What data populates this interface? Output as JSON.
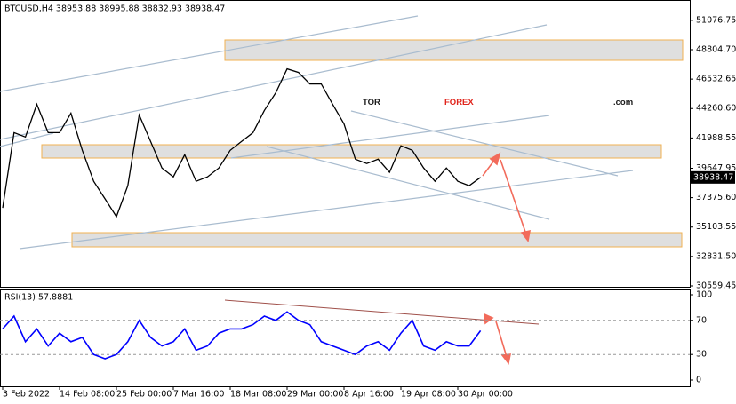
{
  "chart_data": [
    {
      "type": "line",
      "title": "BTCUSD,H4  38953.88 38995.88 38832.93 38938.47",
      "categories": [
        "3 Feb 2022",
        null,
        null,
        null,
        null,
        "14 Feb 08:00",
        null,
        null,
        null,
        null,
        "25 Feb 00:00",
        null,
        null,
        null,
        null,
        "7 Mar 16:00",
        null,
        null,
        null,
        null,
        "18 Mar 08:00",
        null,
        null,
        null,
        null,
        "29 Mar 00:00",
        null,
        null,
        null,
        null,
        "8 Apr 16:00",
        null,
        null,
        null,
        null,
        "19 Apr 08:00",
        null,
        null,
        null,
        null,
        "30 Apr 00:00",
        null,
        null
      ],
      "series": [
        {
          "name": "BTCUSD",
          "color": "#000000",
          "values": [
            36590,
            42400,
            42060,
            44590,
            42400,
            42400,
            43900,
            41030,
            38640,
            37280,
            35910,
            38300,
            43770,
            41720,
            39670,
            38980,
            40690,
            38640,
            38980,
            39670,
            41030,
            41720,
            42400,
            44110,
            45470,
            47320,
            47050,
            46160,
            46160,
            44590,
            43080,
            40350,
            40010,
            40350,
            39330,
            41380,
            41030,
            39670,
            38640,
            39670,
            38640,
            38300,
            38938.47
          ]
        }
      ],
      "last_price": 38938.47,
      "ylim": [
        30490,
        52440
      ],
      "yticks": [
        51076.75,
        {
          "value": 48804.7,
          "label": "48804.70"
        },
        46532.65,
        {
          "value": 44260.6,
          "label": "44260.60"
        },
        41988.55,
        39647.95,
        {
          "value": 37375.6,
          "label": "37375.60"
        },
        35103.55,
        {
          "value": 32831.5,
          "label": "32831.50"
        },
        30559.45
      ],
      "watermark": {
        "part1": "TOR",
        "part2": "FOREX",
        "part3": ".com"
      }
    },
    {
      "type": "line",
      "title": "RSI(13) 57.8881",
      "series": [
        {
          "name": "RSI(13)",
          "color": "#0000ff",
          "values": [
            60,
            75,
            45,
            60,
            40,
            55,
            45,
            50,
            30,
            25,
            30,
            45,
            70,
            50,
            40,
            45,
            60,
            35,
            40,
            55,
            60,
            60,
            65,
            75,
            70,
            80,
            70,
            65,
            45,
            40,
            35,
            30,
            40,
            45,
            35,
            55,
            70,
            40,
            35,
            45,
            40,
            40,
            57.8881
          ]
        }
      ],
      "ylim": [
        0,
        100
      ],
      "yticks": [
        100,
        70,
        30,
        0
      ],
      "dashed_ticks": [
        70,
        30
      ]
    }
  ]
}
